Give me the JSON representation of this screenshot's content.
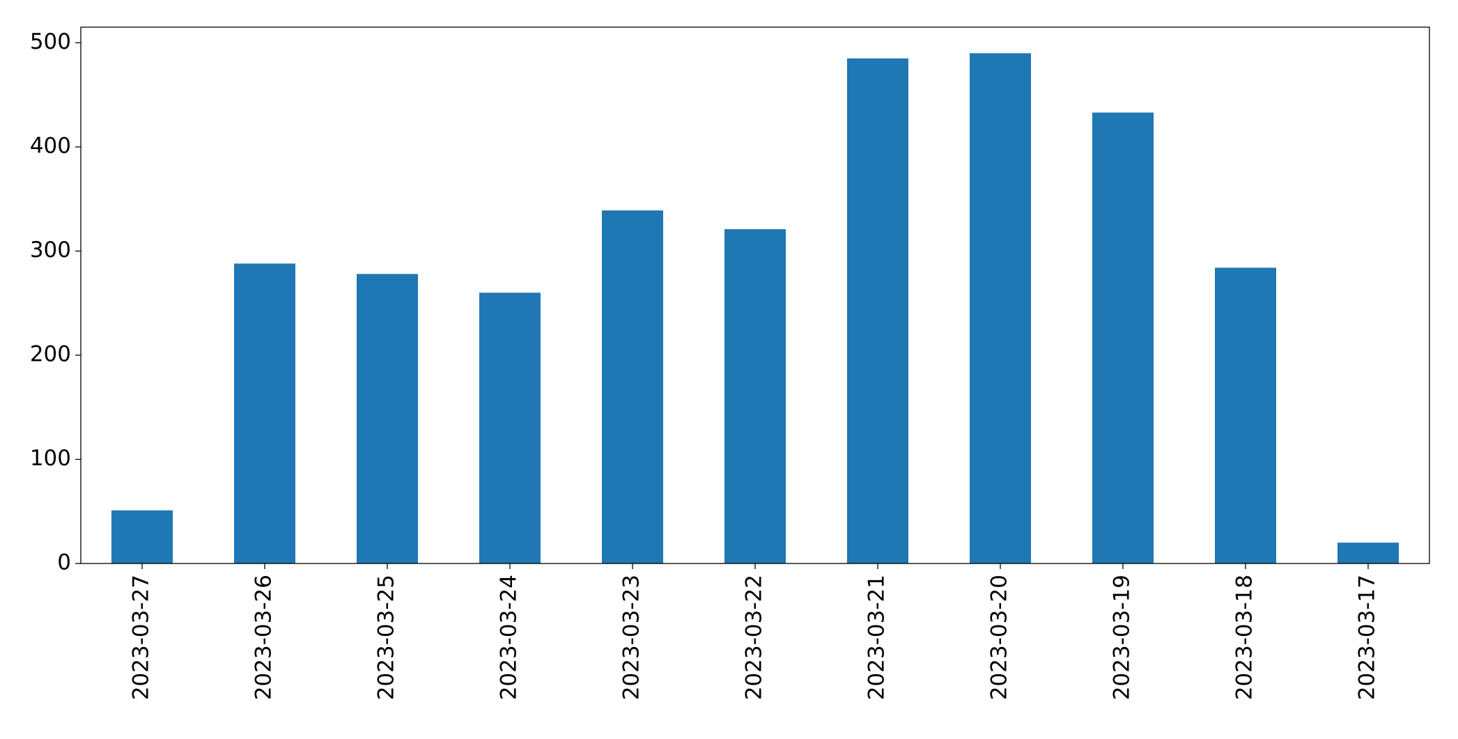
{
  "chart_data": {
    "type": "bar",
    "categories": [
      "2023-03-27",
      "2023-03-26",
      "2023-03-25",
      "2023-03-24",
      "2023-03-23",
      "2023-03-22",
      "2023-03-21",
      "2023-03-20",
      "2023-03-19",
      "2023-03-18",
      "2023-03-17"
    ],
    "values": [
      51,
      288,
      278,
      260,
      339,
      321,
      485,
      490,
      433,
      284,
      20
    ],
    "color": "#1f77b4",
    "ylim": [
      0,
      515
    ],
    "yticks": [
      0,
      100,
      200,
      300,
      400,
      500
    ],
    "grid": false
  }
}
